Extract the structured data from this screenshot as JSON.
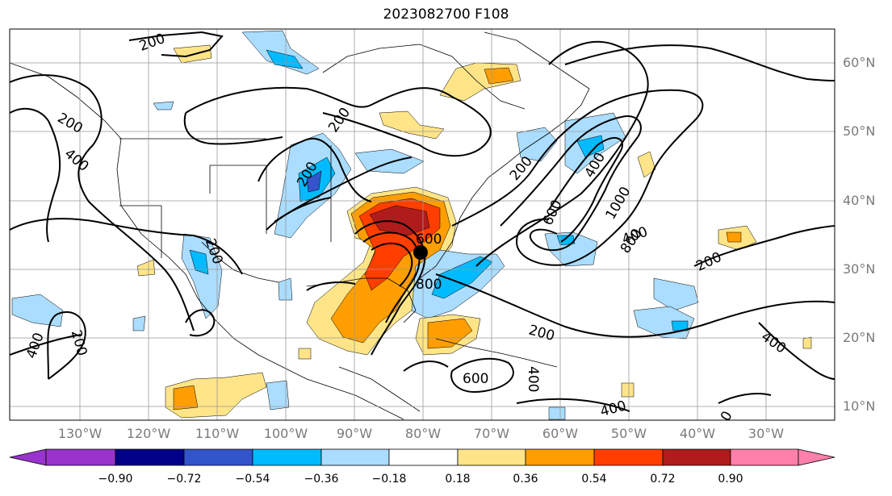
{
  "title": "2023082700 F108",
  "lat_labels": [
    "60°N",
    "50°N",
    "40°N",
    "30°N",
    "20°N",
    "10°N"
  ],
  "lon_labels": [
    "130°W",
    "120°W",
    "110°W",
    "100°W",
    "90°W",
    "80°W",
    "70°W",
    "60°W",
    "50°W",
    "40°W",
    "30°W"
  ],
  "contour_labels": [
    "200",
    "200",
    "400",
    "200",
    "200",
    "200",
    "400",
    "1000",
    "800",
    "600",
    "600",
    "800",
    "200",
    "400",
    "200",
    "200",
    "400",
    "200",
    "400",
    "400",
    "600",
    "0",
    "400",
    "200"
  ],
  "colorbar": {
    "tick_labels": [
      "−0.90",
      "−0.72",
      "−0.54",
      "−0.36",
      "−0.18",
      "0.18",
      "0.36",
      "0.54",
      "0.72",
      "0.90"
    ],
    "colors": [
      "#9933cc",
      "#000088",
      "#3355cc",
      "#00bbff",
      "#aaddff",
      "#ffffff",
      "#ffe588",
      "#ff9e00",
      "#ff3e00",
      "#b01c1c",
      "#ff80aa"
    ]
  },
  "marker": "storm-center-dot"
}
